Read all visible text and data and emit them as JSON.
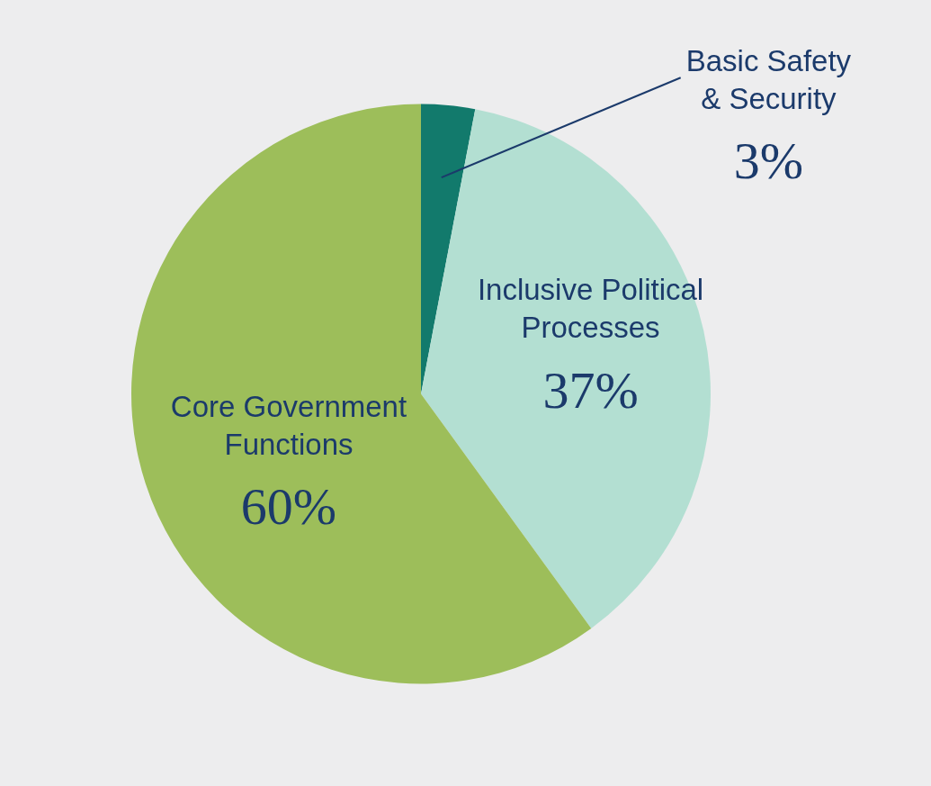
{
  "chart_data": {
    "type": "pie",
    "categories": [
      "Basic Safety & Security",
      "Inclusive Political Processes",
      "Core Government Functions"
    ],
    "values": [
      3,
      37,
      60
    ],
    "colors": [
      "#127a6c",
      "#b3dfd2",
      "#9dbe5a"
    ],
    "value_labels": [
      "3%",
      "37%",
      "60%"
    ],
    "legend": false
  }
}
